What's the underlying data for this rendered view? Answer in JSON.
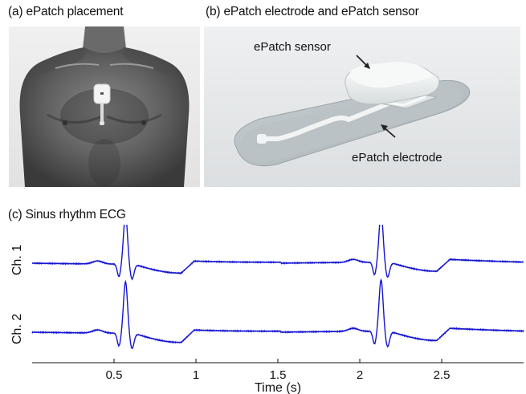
{
  "panels": {
    "a": {
      "title": "(a) ePatch placement"
    },
    "b": {
      "title": "(b) ePatch electrode and ePatch sensor",
      "labels": {
        "sensor": "ePatch sensor",
        "electrode": "ePatch electrode"
      }
    },
    "c": {
      "title": "(c) Sinus rhythm ECG"
    }
  },
  "chart_data": {
    "type": "line",
    "title": "(c) Sinus rhythm ECG",
    "xlabel": "Time (s)",
    "ylabel": "",
    "xlim": [
      0,
      3
    ],
    "xticks": [
      0.5,
      1,
      1.5,
      2,
      2.5
    ],
    "xtick_labels": [
      "0.5",
      "1",
      "1.5",
      "2",
      "2.5"
    ],
    "beat_times": [
      0.57,
      2.13
    ],
    "series": [
      {
        "name": "Ch. 1",
        "color": "#1414d2"
      },
      {
        "name": "Ch. 2",
        "color": "#1414d2"
      }
    ],
    "grid": false
  }
}
